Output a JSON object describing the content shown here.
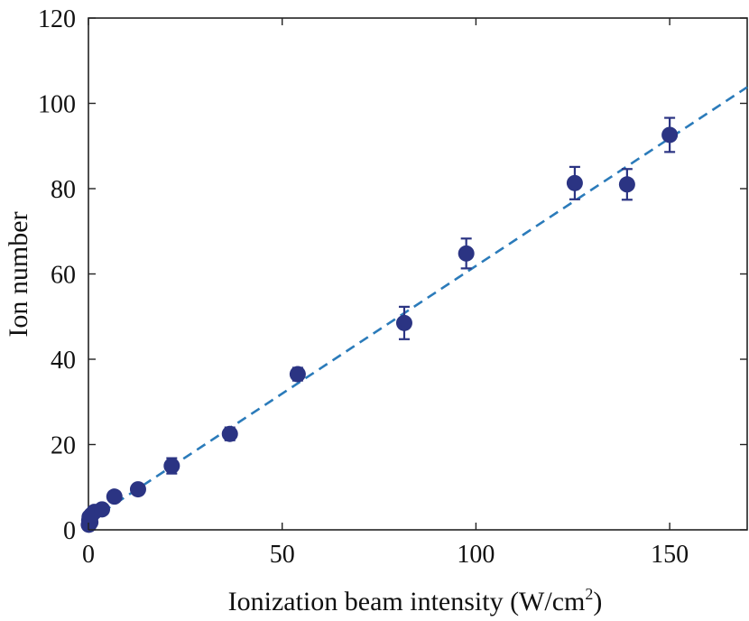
{
  "chart_data": {
    "type": "scatter",
    "xlabel": "Ionization beam intensity (W/cm",
    "xlabel_sup": "2",
    "xlabel_end": ")",
    "ylabel": "Ion number",
    "xlim": [
      0,
      170
    ],
    "ylim": [
      0,
      120
    ],
    "xticks": [
      0,
      50,
      100,
      150
    ],
    "yticks": [
      0,
      20,
      40,
      60,
      80,
      100,
      120
    ],
    "xtick_labels": [
      "0",
      "50",
      "100",
      "150"
    ],
    "ytick_labels": [
      "0",
      "20",
      "40",
      "60",
      "80",
      "100",
      "120"
    ],
    "grid": false,
    "marker_color": "#2b3483",
    "line_color": "#2b7bba",
    "series": [
      {
        "kind": "points",
        "x": [
          0.1,
          0.2,
          0.3,
          0.5,
          0.8,
          1.5,
          3.5,
          6.7,
          12.8,
          21.5,
          36.5,
          54.0,
          81.5,
          97.5,
          125.5,
          139.0,
          150.0
        ],
        "y": [
          1.2,
          2.2,
          3.0,
          1.8,
          3.5,
          4.2,
          4.8,
          7.8,
          9.5,
          15.0,
          22.5,
          36.5,
          48.5,
          64.8,
          81.3,
          81.0,
          92.6
        ],
        "yerr": [
          0.4,
          0.5,
          0.5,
          0.4,
          0.6,
          0.6,
          0.7,
          0.8,
          0.9,
          1.8,
          1.5,
          1.5,
          3.8,
          3.5,
          3.8,
          3.6,
          4.0
        ]
      },
      {
        "kind": "fit-line",
        "x": [
          0,
          170
        ],
        "y": [
          2.0,
          103.8
        ]
      }
    ]
  }
}
